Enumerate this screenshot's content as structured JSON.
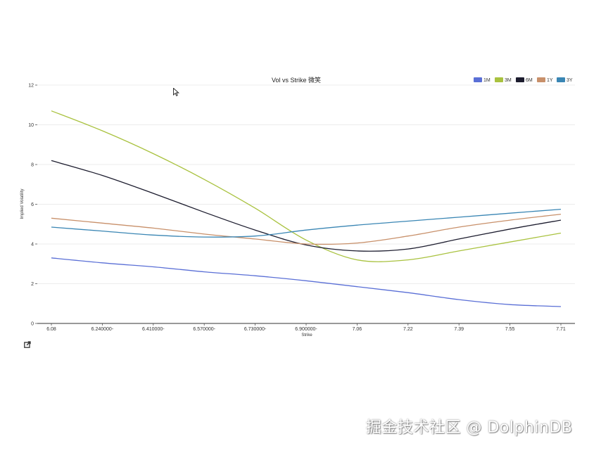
{
  "chart_data": {
    "type": "line",
    "title": "Vol vs Strike 微笑",
    "xlabel": "Strike",
    "ylabel": "Implied Volatility",
    "ylim": [
      0,
      12
    ],
    "yticks": [
      0,
      2,
      4,
      6,
      8,
      10,
      12
    ],
    "xticks": [
      "6.08",
      "6.240000-",
      "6.410000-",
      "6.570000-",
      "6.730000-",
      "6.900000-",
      "7.06",
      "7.22",
      "7.39",
      "7.55",
      "7.71"
    ],
    "x": [
      6.08,
      6.24,
      6.41,
      6.57,
      6.73,
      6.9,
      7.06,
      7.22,
      7.39,
      7.55,
      7.71
    ],
    "legend_position": "top-right",
    "grid": true,
    "series": [
      {
        "name": "1M",
        "color": "#5a6fd6",
        "values": [
          3.3,
          3.05,
          2.85,
          2.6,
          2.4,
          2.15,
          1.85,
          1.55,
          1.2,
          0.95,
          0.85
        ]
      },
      {
        "name": "3M",
        "color": "#a9c23f",
        "values": [
          10.7,
          9.7,
          8.55,
          7.25,
          5.8,
          4.2,
          3.2,
          3.2,
          3.65,
          4.1,
          4.55
        ]
      },
      {
        "name": "6M",
        "color": "#1c1c2e",
        "values": [
          8.2,
          7.45,
          6.55,
          5.6,
          4.7,
          3.95,
          3.65,
          3.75,
          4.25,
          4.75,
          5.2
        ]
      },
      {
        "name": "1Y",
        "color": "#c8906a",
        "values": [
          5.3,
          5.05,
          4.8,
          4.5,
          4.25,
          4.0,
          4.05,
          4.4,
          4.85,
          5.2,
          5.5
        ]
      },
      {
        "name": "3Y",
        "color": "#3a86b4",
        "values": [
          4.85,
          4.65,
          4.45,
          4.35,
          4.4,
          4.7,
          4.95,
          5.15,
          5.35,
          5.55,
          5.75
        ]
      }
    ]
  },
  "icons": {
    "expand": "expand-icon",
    "cursor": "cursor-arrow-icon"
  },
  "watermark": "掘金技术社区 @ DolphinDB"
}
